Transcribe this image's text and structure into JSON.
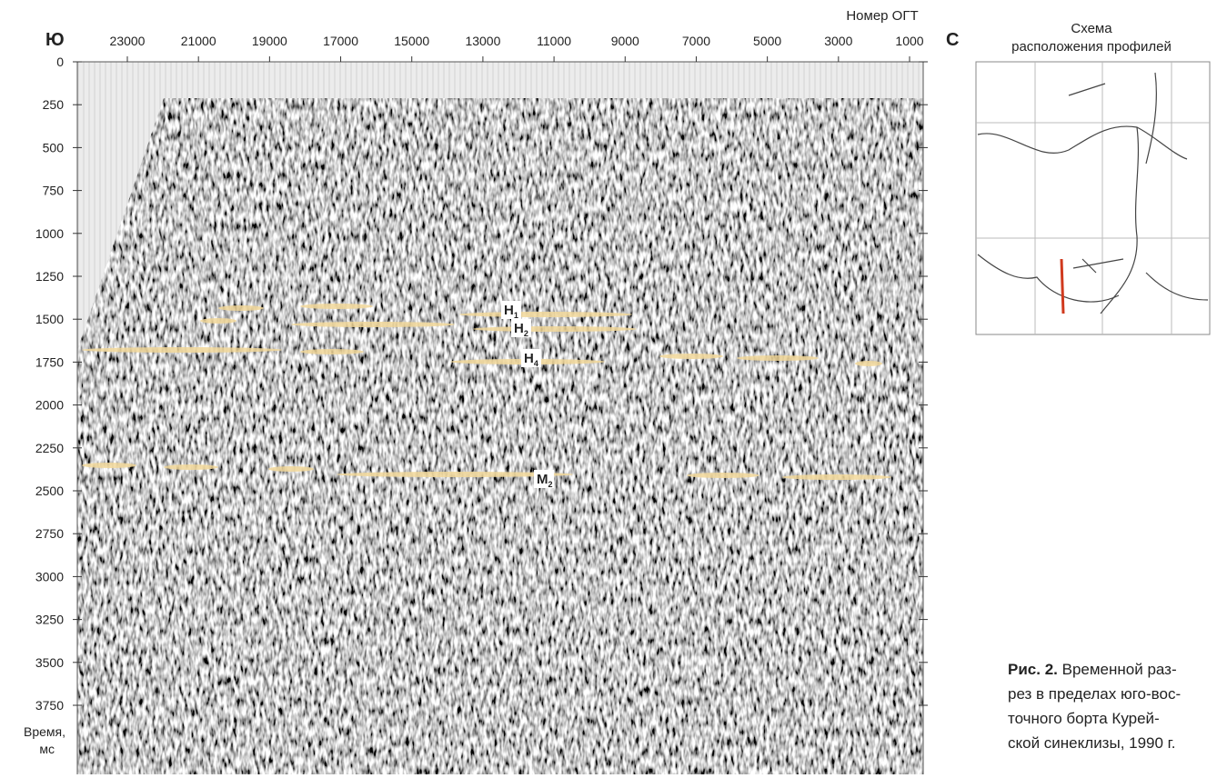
{
  "figure": {
    "x_axis": {
      "title": "Номер ОГТ",
      "left_label": "Ю",
      "right_label": "С",
      "ticks": [
        23000,
        21000,
        19000,
        17000,
        15000,
        13000,
        11000,
        9000,
        7000,
        5000,
        3000,
        1000
      ]
    },
    "y_axis": {
      "title_lines": [
        "Время,",
        "мс"
      ],
      "ticks": [
        0,
        250,
        500,
        750,
        1000,
        1250,
        1500,
        1750,
        2000,
        2250,
        2500,
        2750,
        3000,
        3250,
        3500,
        3750
      ]
    },
    "horizons": [
      {
        "name": "Н",
        "sub": "1"
      },
      {
        "name": "Н",
        "sub": "2"
      },
      {
        "name": "Н",
        "sub": "4"
      },
      {
        "name": "М",
        "sub": "2"
      }
    ],
    "inset": {
      "title_lines": [
        "Схема",
        "расположения профилей"
      ]
    },
    "caption": {
      "label": "Рис. 2.",
      "lines": [
        "Временной раз-",
        "рез в пределах юго-вос-",
        "точного борта Курей-",
        "ской синеклизы, 1990 г."
      ]
    }
  }
}
